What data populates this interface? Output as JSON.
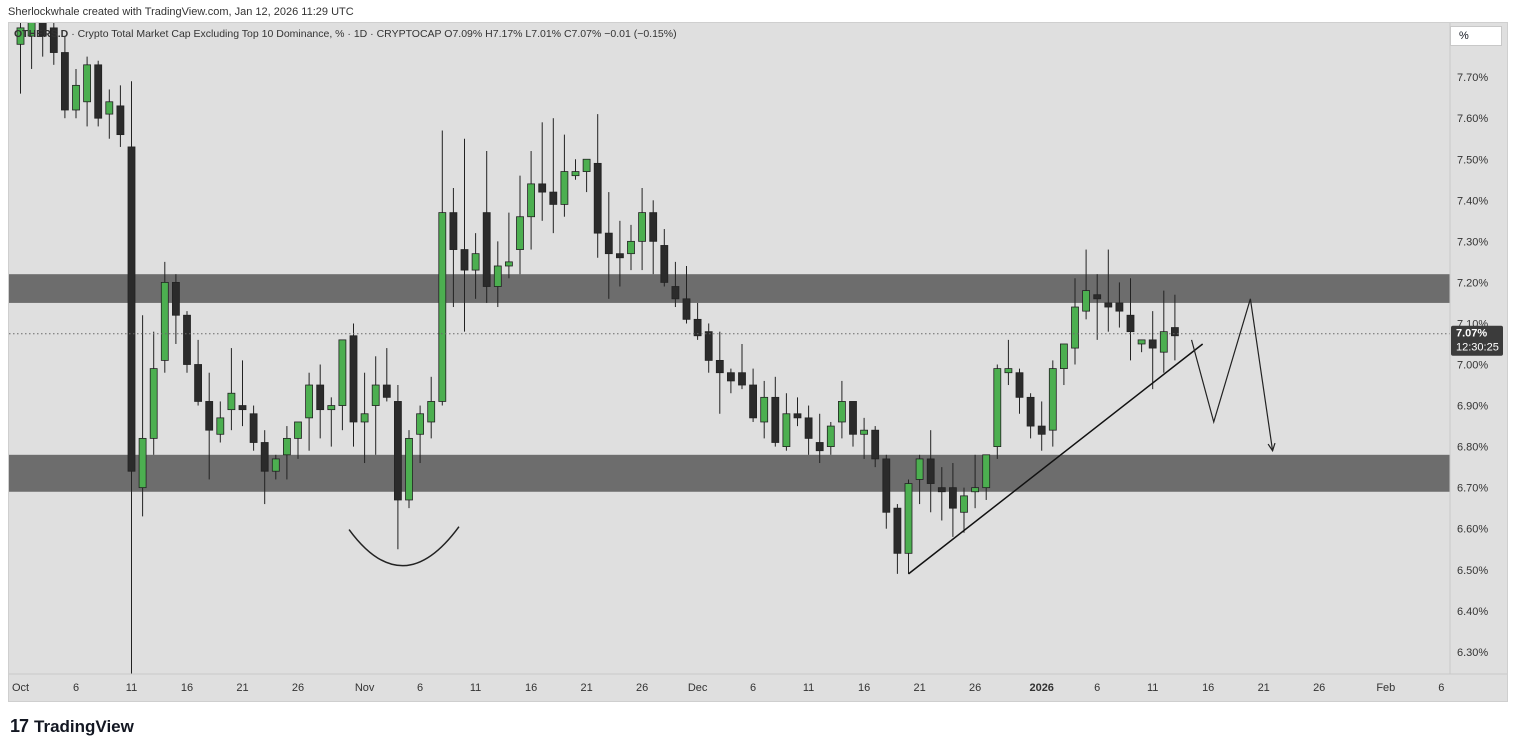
{
  "header": {
    "attribution": "Sherlockwhale created with TradingView.com, Jan 12, 2026 11:29 UTC"
  },
  "legend": {
    "symbol": "OTHERS.D",
    "description": "· Crypto Total Market Cap Excluding Top 10 Dominance, % · 1D · CRYPTOCAP",
    "ohlc": "O7.09% H7.17% L7.01% C7.07% −0.01 (−0.15%)"
  },
  "scale_button": "%",
  "price_tag": {
    "value": "7.07%",
    "countdown": "12:30:25"
  },
  "footer": {
    "logo_glyph": "17",
    "brand": "TradingView"
  },
  "colors": {
    "up": "#4caf50",
    "down": "#2b2b2b",
    "zone": "#6d6d6d",
    "background": "#dfdfdf"
  },
  "chart_data": {
    "type": "candlestick",
    "ylim": [
      6.22,
      7.86
    ],
    "yticks": [
      "7.70%",
      "7.60%",
      "7.50%",
      "7.40%",
      "7.30%",
      "7.20%",
      "7.10%",
      "7.00%",
      "6.90%",
      "6.80%",
      "6.70%",
      "6.60%",
      "6.50%",
      "6.40%",
      "6.30%"
    ],
    "ytick_values": [
      7.7,
      7.6,
      7.5,
      7.4,
      7.3,
      7.2,
      7.1,
      7.0,
      6.9,
      6.8,
      6.7,
      6.6,
      6.5,
      6.4,
      6.3
    ],
    "xtick_labels": [
      "Oct",
      "6",
      "11",
      "16",
      "21",
      "26",
      "Nov",
      "6",
      "11",
      "16",
      "21",
      "26",
      "Dec",
      "6",
      "11",
      "16",
      "21",
      "26",
      "2026",
      "6",
      "11",
      "16",
      "21",
      "26",
      "Feb",
      "6"
    ],
    "xtick_days": [
      0,
      5,
      10,
      15,
      20,
      25,
      31,
      36,
      41,
      46,
      51,
      56,
      61,
      66,
      71,
      76,
      81,
      86,
      92,
      97,
      102,
      107,
      112,
      117,
      123,
      128
    ],
    "xtick_bold": [
      false,
      false,
      false,
      false,
      false,
      false,
      false,
      false,
      false,
      false,
      false,
      false,
      false,
      false,
      false,
      false,
      false,
      false,
      true,
      false,
      false,
      false,
      false,
      false,
      false,
      false
    ],
    "last_price": 7.075,
    "zones": [
      {
        "low": 7.15,
        "high": 7.22
      },
      {
        "low": 6.69,
        "high": 6.78
      }
    ],
    "candles": [
      {
        "d": 0,
        "o": 7.78,
        "h": 7.86,
        "l": 7.66,
        "c": 7.82
      },
      {
        "d": 1,
        "o": 7.8,
        "h": 7.86,
        "l": 7.72,
        "c": 7.84
      },
      {
        "d": 2,
        "o": 7.84,
        "h": 7.86,
        "l": 7.75,
        "c": 7.8
      },
      {
        "d": 3,
        "o": 7.82,
        "h": 7.86,
        "l": 7.73,
        "c": 7.76
      },
      {
        "d": 4,
        "o": 7.76,
        "h": 7.8,
        "l": 7.6,
        "c": 7.62
      },
      {
        "d": 5,
        "o": 7.62,
        "h": 7.72,
        "l": 7.6,
        "c": 7.68
      },
      {
        "d": 6,
        "o": 7.64,
        "h": 7.75,
        "l": 7.58,
        "c": 7.73
      },
      {
        "d": 7,
        "o": 7.73,
        "h": 7.74,
        "l": 7.58,
        "c": 7.6
      },
      {
        "d": 8,
        "o": 7.61,
        "h": 7.67,
        "l": 7.55,
        "c": 7.64
      },
      {
        "d": 9,
        "o": 7.63,
        "h": 7.68,
        "l": 7.53,
        "c": 7.56
      },
      {
        "d": 10,
        "o": 7.53,
        "h": 7.69,
        "l": 6.24,
        "c": 6.74
      },
      {
        "d": 11,
        "o": 6.7,
        "h": 7.12,
        "l": 6.63,
        "c": 6.82
      },
      {
        "d": 12,
        "o": 6.82,
        "h": 7.08,
        "l": 6.78,
        "c": 6.99
      },
      {
        "d": 13,
        "o": 7.01,
        "h": 7.25,
        "l": 6.98,
        "c": 7.2
      },
      {
        "d": 14,
        "o": 7.2,
        "h": 7.22,
        "l": 7.05,
        "c": 7.12
      },
      {
        "d": 15,
        "o": 7.12,
        "h": 7.13,
        "l": 6.98,
        "c": 7.0
      },
      {
        "d": 16,
        "o": 7.0,
        "h": 7.06,
        "l": 6.9,
        "c": 6.91
      },
      {
        "d": 17,
        "o": 6.91,
        "h": 6.98,
        "l": 6.72,
        "c": 6.84
      },
      {
        "d": 18,
        "o": 6.83,
        "h": 6.91,
        "l": 6.81,
        "c": 6.87
      },
      {
        "d": 19,
        "o": 6.89,
        "h": 7.04,
        "l": 6.84,
        "c": 6.93
      },
      {
        "d": 20,
        "o": 6.9,
        "h": 7.01,
        "l": 6.85,
        "c": 6.89
      },
      {
        "d": 21,
        "o": 6.88,
        "h": 6.9,
        "l": 6.79,
        "c": 6.81
      },
      {
        "d": 22,
        "o": 6.81,
        "h": 6.84,
        "l": 6.66,
        "c": 6.74
      },
      {
        "d": 23,
        "o": 6.74,
        "h": 6.78,
        "l": 6.72,
        "c": 6.77
      },
      {
        "d": 24,
        "o": 6.78,
        "h": 6.85,
        "l": 6.72,
        "c": 6.82
      },
      {
        "d": 25,
        "o": 6.82,
        "h": 6.86,
        "l": 6.77,
        "c": 6.86
      },
      {
        "d": 26,
        "o": 6.87,
        "h": 6.98,
        "l": 6.79,
        "c": 6.95
      },
      {
        "d": 27,
        "o": 6.95,
        "h": 7.0,
        "l": 6.82,
        "c": 6.89
      },
      {
        "d": 28,
        "o": 6.89,
        "h": 6.92,
        "l": 6.8,
        "c": 6.9
      },
      {
        "d": 29,
        "o": 6.9,
        "h": 7.06,
        "l": 6.84,
        "c": 7.06
      },
      {
        "d": 30,
        "o": 7.07,
        "h": 7.1,
        "l": 6.8,
        "c": 6.86
      },
      {
        "d": 31,
        "o": 6.86,
        "h": 6.98,
        "l": 6.76,
        "c": 6.88
      },
      {
        "d": 32,
        "o": 6.9,
        "h": 7.02,
        "l": 6.78,
        "c": 6.95
      },
      {
        "d": 33,
        "o": 6.95,
        "h": 7.04,
        "l": 6.91,
        "c": 6.92
      },
      {
        "d": 34,
        "o": 6.91,
        "h": 6.95,
        "l": 6.55,
        "c": 6.67
      },
      {
        "d": 35,
        "o": 6.67,
        "h": 6.84,
        "l": 6.65,
        "c": 6.82
      },
      {
        "d": 36,
        "o": 6.83,
        "h": 6.9,
        "l": 6.76,
        "c": 6.88
      },
      {
        "d": 37,
        "o": 6.86,
        "h": 6.97,
        "l": 6.82,
        "c": 6.91
      },
      {
        "d": 38,
        "o": 6.91,
        "h": 7.57,
        "l": 6.9,
        "c": 7.37
      },
      {
        "d": 39,
        "o": 7.37,
        "h": 7.43,
        "l": 7.14,
        "c": 7.28
      },
      {
        "d": 40,
        "o": 7.28,
        "h": 7.55,
        "l": 7.08,
        "c": 7.23
      },
      {
        "d": 41,
        "o": 7.23,
        "h": 7.32,
        "l": 7.16,
        "c": 7.27
      },
      {
        "d": 42,
        "o": 7.37,
        "h": 7.52,
        "l": 7.15,
        "c": 7.19
      },
      {
        "d": 43,
        "o": 7.19,
        "h": 7.3,
        "l": 7.14,
        "c": 7.24
      },
      {
        "d": 44,
        "o": 7.24,
        "h": 7.37,
        "l": 7.21,
        "c": 7.25
      },
      {
        "d": 45,
        "o": 7.28,
        "h": 7.46,
        "l": 7.22,
        "c": 7.36
      },
      {
        "d": 46,
        "o": 7.36,
        "h": 7.52,
        "l": 7.28,
        "c": 7.44
      },
      {
        "d": 47,
        "o": 7.44,
        "h": 7.59,
        "l": 7.35,
        "c": 7.42
      },
      {
        "d": 48,
        "o": 7.42,
        "h": 7.6,
        "l": 7.32,
        "c": 7.39
      },
      {
        "d": 49,
        "o": 7.39,
        "h": 7.56,
        "l": 7.36,
        "c": 7.47
      },
      {
        "d": 50,
        "o": 7.46,
        "h": 7.5,
        "l": 7.45,
        "c": 7.47
      },
      {
        "d": 51,
        "o": 7.47,
        "h": 7.5,
        "l": 7.42,
        "c": 7.5
      },
      {
        "d": 52,
        "o": 7.49,
        "h": 7.61,
        "l": 7.26,
        "c": 7.32
      },
      {
        "d": 53,
        "o": 7.32,
        "h": 7.42,
        "l": 7.16,
        "c": 7.27
      },
      {
        "d": 54,
        "o": 7.27,
        "h": 7.35,
        "l": 7.19,
        "c": 7.26
      },
      {
        "d": 55,
        "o": 7.27,
        "h": 7.34,
        "l": 7.23,
        "c": 7.3
      },
      {
        "d": 56,
        "o": 7.3,
        "h": 7.43,
        "l": 7.23,
        "c": 7.37
      },
      {
        "d": 57,
        "o": 7.37,
        "h": 7.4,
        "l": 7.22,
        "c": 7.3
      },
      {
        "d": 58,
        "o": 7.29,
        "h": 7.33,
        "l": 7.19,
        "c": 7.2
      },
      {
        "d": 59,
        "o": 7.19,
        "h": 7.25,
        "l": 7.14,
        "c": 7.16
      },
      {
        "d": 60,
        "o": 7.16,
        "h": 7.24,
        "l": 7.1,
        "c": 7.11
      },
      {
        "d": 61,
        "o": 7.11,
        "h": 7.15,
        "l": 7.06,
        "c": 7.07
      },
      {
        "d": 62,
        "o": 7.08,
        "h": 7.1,
        "l": 6.98,
        "c": 7.01
      },
      {
        "d": 63,
        "o": 7.01,
        "h": 7.08,
        "l": 6.88,
        "c": 6.98
      },
      {
        "d": 64,
        "o": 6.98,
        "h": 6.99,
        "l": 6.93,
        "c": 6.96
      },
      {
        "d": 65,
        "o": 6.98,
        "h": 7.05,
        "l": 6.94,
        "c": 6.95
      },
      {
        "d": 66,
        "o": 6.95,
        "h": 6.99,
        "l": 6.86,
        "c": 6.87
      },
      {
        "d": 67,
        "o": 6.86,
        "h": 6.96,
        "l": 6.82,
        "c": 6.92
      },
      {
        "d": 68,
        "o": 6.92,
        "h": 6.97,
        "l": 6.8,
        "c": 6.81
      },
      {
        "d": 69,
        "o": 6.8,
        "h": 6.93,
        "l": 6.79,
        "c": 6.88
      },
      {
        "d": 70,
        "o": 6.88,
        "h": 6.92,
        "l": 6.85,
        "c": 6.87
      },
      {
        "d": 71,
        "o": 6.87,
        "h": 6.9,
        "l": 6.78,
        "c": 6.82
      },
      {
        "d": 72,
        "o": 6.81,
        "h": 6.88,
        "l": 6.76,
        "c": 6.79
      },
      {
        "d": 73,
        "o": 6.8,
        "h": 6.86,
        "l": 6.78,
        "c": 6.85
      },
      {
        "d": 74,
        "o": 6.86,
        "h": 6.96,
        "l": 6.82,
        "c": 6.91
      },
      {
        "d": 75,
        "o": 6.91,
        "h": 6.91,
        "l": 6.8,
        "c": 6.83
      },
      {
        "d": 76,
        "o": 6.83,
        "h": 6.87,
        "l": 6.77,
        "c": 6.84
      },
      {
        "d": 77,
        "o": 6.84,
        "h": 6.85,
        "l": 6.75,
        "c": 6.77
      },
      {
        "d": 78,
        "o": 6.77,
        "h": 6.78,
        "l": 6.6,
        "c": 6.64
      },
      {
        "d": 79,
        "o": 6.65,
        "h": 6.66,
        "l": 6.49,
        "c": 6.54
      },
      {
        "d": 80,
        "o": 6.54,
        "h": 6.72,
        "l": 6.49,
        "c": 6.71
      },
      {
        "d": 81,
        "o": 6.72,
        "h": 6.78,
        "l": 6.66,
        "c": 6.77
      },
      {
        "d": 82,
        "o": 6.77,
        "h": 6.84,
        "l": 6.64,
        "c": 6.71
      },
      {
        "d": 83,
        "o": 6.7,
        "h": 6.75,
        "l": 6.62,
        "c": 6.69
      },
      {
        "d": 84,
        "o": 6.7,
        "h": 6.76,
        "l": 6.58,
        "c": 6.65
      },
      {
        "d": 85,
        "o": 6.64,
        "h": 6.7,
        "l": 6.59,
        "c": 6.68
      },
      {
        "d": 86,
        "o": 6.69,
        "h": 6.78,
        "l": 6.65,
        "c": 6.7
      },
      {
        "d": 87,
        "o": 6.7,
        "h": 6.78,
        "l": 6.67,
        "c": 6.78
      },
      {
        "d": 88,
        "o": 6.8,
        "h": 7.0,
        "l": 6.77,
        "c": 6.99
      },
      {
        "d": 89,
        "o": 6.98,
        "h": 7.06,
        "l": 6.95,
        "c": 6.99
      },
      {
        "d": 90,
        "o": 6.98,
        "h": 6.99,
        "l": 6.88,
        "c": 6.92
      },
      {
        "d": 91,
        "o": 6.92,
        "h": 6.93,
        "l": 6.82,
        "c": 6.85
      },
      {
        "d": 92,
        "o": 6.85,
        "h": 6.91,
        "l": 6.79,
        "c": 6.83
      },
      {
        "d": 93,
        "o": 6.84,
        "h": 7.01,
        "l": 6.8,
        "c": 6.99
      },
      {
        "d": 94,
        "o": 6.99,
        "h": 7.05,
        "l": 6.95,
        "c": 7.05
      },
      {
        "d": 95,
        "o": 7.04,
        "h": 7.21,
        "l": 7.0,
        "c": 7.14
      },
      {
        "d": 96,
        "o": 7.13,
        "h": 7.28,
        "l": 7.11,
        "c": 7.18
      },
      {
        "d": 97,
        "o": 7.17,
        "h": 7.22,
        "l": 7.06,
        "c": 7.16
      },
      {
        "d": 98,
        "o": 7.15,
        "h": 7.28,
        "l": 7.08,
        "c": 7.14
      },
      {
        "d": 99,
        "o": 7.15,
        "h": 7.2,
        "l": 7.09,
        "c": 7.13
      },
      {
        "d": 100,
        "o": 7.12,
        "h": 7.21,
        "l": 7.01,
        "c": 7.08
      },
      {
        "d": 101,
        "o": 7.05,
        "h": 7.06,
        "l": 7.03,
        "c": 7.06
      },
      {
        "d": 102,
        "o": 7.06,
        "h": 7.13,
        "l": 6.94,
        "c": 7.04
      },
      {
        "d": 103,
        "o": 7.03,
        "h": 7.18,
        "l": 6.98,
        "c": 7.08
      },
      {
        "d": 104,
        "o": 7.09,
        "h": 7.17,
        "l": 7.01,
        "c": 7.07
      }
    ],
    "annotations": {
      "bottom_arc": [
        [
          29.6,
          6.598
        ],
        [
          34.5,
          6.51
        ],
        [
          39.5,
          6.605
        ]
      ],
      "trendline": [
        [
          80.0,
          6.49
        ],
        [
          106.5,
          7.05
        ]
      ],
      "projection_path": [
        [
          105.5,
          7.06
        ],
        [
          107.5,
          6.86
        ],
        [
          110.8,
          7.16
        ],
        [
          112.8,
          6.79
        ]
      ]
    }
  }
}
